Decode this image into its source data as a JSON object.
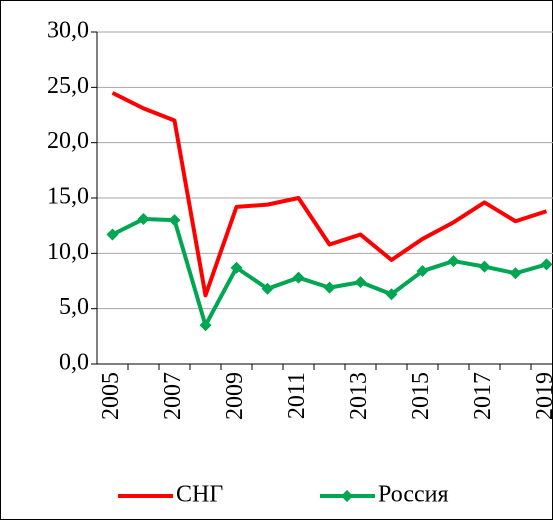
{
  "chart_data": {
    "type": "line",
    "categories": [
      "2005",
      null,
      "2007",
      null,
      "2009",
      null,
      "2011",
      null,
      "2013",
      null,
      "2015",
      null,
      "2017",
      null,
      "2019"
    ],
    "series": [
      {
        "name": "СНГ",
        "color": "#ff0000",
        "values": [
          24.5,
          23.1,
          22.0,
          6.2,
          14.2,
          14.4,
          15.0,
          10.8,
          11.7,
          9.4,
          11.3,
          12.8,
          14.6,
          12.9,
          13.8
        ]
      },
      {
        "name": "Россия",
        "color": "#00a651",
        "marker": "diamond",
        "values": [
          11.7,
          13.1,
          13.0,
          3.5,
          8.7,
          6.8,
          7.8,
          6.9,
          7.4,
          6.3,
          8.4,
          9.3,
          8.8,
          8.2,
          9.0
        ]
      }
    ],
    "ylim": [
      0,
      30
    ],
    "yticks": [
      {
        "value": 0,
        "label": "0,0"
      },
      {
        "value": 5,
        "label": "5,0"
      },
      {
        "value": 10,
        "label": "10,0"
      },
      {
        "value": 15,
        "label": "15,0"
      },
      {
        "value": 20,
        "label": "20,0"
      },
      {
        "value": 25,
        "label": "25,0"
      },
      {
        "value": 30,
        "label": "30,0"
      }
    ],
    "grid": true,
    "legend": "bottom"
  }
}
